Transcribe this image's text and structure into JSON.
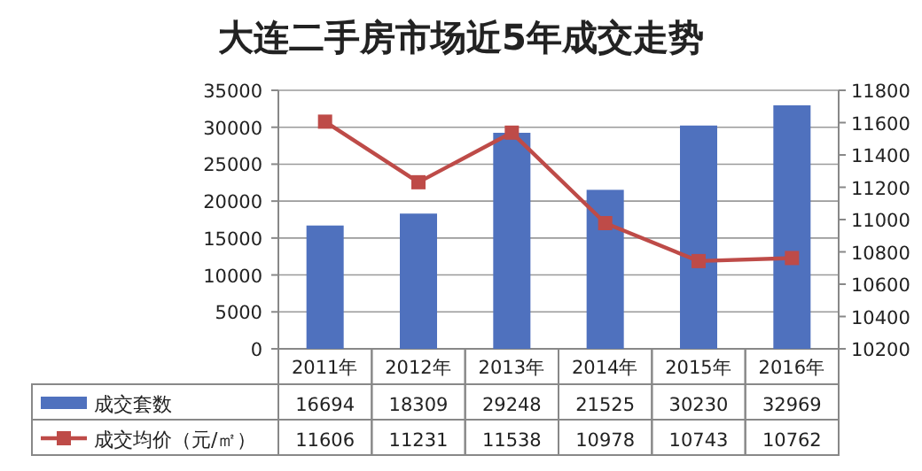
{
  "chart_data": {
    "type": "bar",
    "title": "大连二手房市场近5年成交走势",
    "categories": [
      "2011年",
      "2012年",
      "2013年",
      "2014年",
      "2015年",
      "2016年"
    ],
    "series": [
      {
        "name": "成交套数",
        "color": "#4f71be",
        "values": [
          16694,
          18309,
          29248,
          21525,
          30230,
          32969
        ]
      },
      {
        "name": "成交均价（元/㎡）",
        "type": "line",
        "axis": "y2",
        "color": "#be4b48",
        "marker": "square",
        "values": [
          11606,
          11231,
          11538,
          10978,
          10743,
          10762
        ]
      }
    ],
    "ylim": [
      0,
      35000
    ],
    "yticks": [
      0,
      5000,
      10000,
      15000,
      20000,
      25000,
      30000,
      35000
    ],
    "y2lim": [
      10200,
      11800
    ],
    "y2ticks": [
      10200,
      10400,
      10600,
      10800,
      11000,
      11200,
      11400,
      11600,
      11800
    ],
    "grid": "y",
    "legend": "bottom left",
    "data_labels": true
  }
}
